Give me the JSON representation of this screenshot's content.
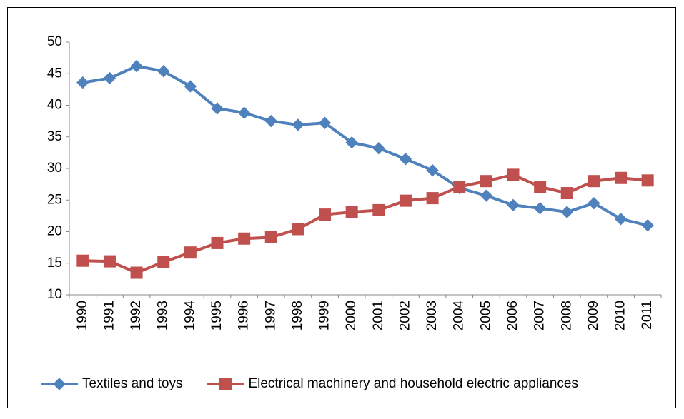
{
  "chart_data": {
    "type": "line",
    "categories": [
      "1990",
      "1991",
      "1992",
      "1993",
      "1994",
      "1995",
      "1996",
      "1997",
      "1998",
      "1999",
      "2000",
      "2001",
      "2002",
      "2003",
      "2004",
      "2005",
      "2006",
      "2007",
      "2008",
      "2009",
      "2010",
      "2011"
    ],
    "series": [
      {
        "name": "Textiles and toys",
        "color": "#4f81bd",
        "marker": "diamond",
        "values": [
          43.6,
          44.3,
          46.2,
          45.4,
          43.0,
          39.5,
          38.8,
          37.5,
          36.9,
          37.2,
          34.1,
          33.2,
          31.5,
          29.7,
          26.9,
          25.7,
          24.2,
          23.7,
          23.1,
          24.5,
          22.0,
          21.0
        ]
      },
      {
        "name": "Electrical machinery and household electric appliances",
        "color": "#c0504d",
        "marker": "square",
        "values": [
          15.4,
          15.3,
          13.5,
          15.2,
          16.7,
          18.2,
          18.9,
          19.1,
          20.4,
          22.7,
          23.1,
          23.4,
          24.9,
          25.3,
          27.1,
          28.0,
          29.0,
          27.1,
          26.1,
          28.0,
          28.5,
          28.1
        ]
      }
    ],
    "ylim": [
      10,
      50
    ],
    "yticks": [
      10,
      15,
      20,
      25,
      30,
      35,
      40,
      45,
      50
    ],
    "grid": false,
    "legend": "bottom"
  }
}
